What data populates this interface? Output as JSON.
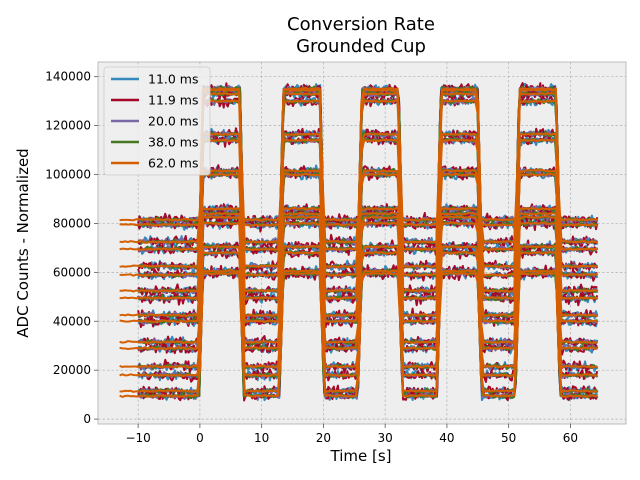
{
  "chart_data": {
    "type": "line",
    "title": [
      "Conversion Rate",
      "Grounded Cup"
    ],
    "xlabel": "Time [s]",
    "ylabel": "ADC Counts - Normalized",
    "xlim": [
      -16.5,
      69
    ],
    "ylim": [
      -2000,
      146000
    ],
    "xticks": [
      -10,
      0,
      10,
      20,
      30,
      40,
      50,
      60
    ],
    "yticks": [
      0,
      20000,
      40000,
      60000,
      80000,
      100000,
      120000,
      140000
    ],
    "xtick_labels": [
      "−10",
      "0",
      "10",
      "20",
      "30",
      "40",
      "50",
      "60"
    ],
    "ytick_labels": [
      "0",
      "20000",
      "40000",
      "60000",
      "80000",
      "100000",
      "120000",
      "140000"
    ],
    "grid": true,
    "legend_position": "top-left",
    "on_windows": [
      [
        0.5,
        6.5
      ],
      [
        13.5,
        19.5
      ],
      [
        26.2,
        32.2
      ],
      [
        39,
        45
      ],
      [
        51.7,
        57.7
      ]
    ],
    "levels": [
      {
        "off": 9500,
        "on": 59500
      },
      {
        "off": 11500,
        "on": 60500
      },
      {
        "off": 18000,
        "on": 68000
      },
      {
        "off": 21500,
        "on": 70500
      },
      {
        "off": 29000,
        "on": 80000
      },
      {
        "off": 31500,
        "on": 82500
      },
      {
        "off": 40000,
        "on": 100000
      },
      {
        "off": 42500,
        "on": 101500
      },
      {
        "off": 49500,
        "on": 114000
      },
      {
        "off": 52500,
        "on": 116500
      },
      {
        "off": 59000,
        "on": 130000
      },
      {
        "off": 62500,
        "on": 133000
      },
      {
        "off": 69500,
        "on": 134500
      },
      {
        "off": 72500,
        "on": 135000
      },
      {
        "off": 79500,
        "on": 84000
      },
      {
        "off": 81500,
        "on": 86000
      }
    ],
    "series": [
      {
        "name": "11.0 ms",
        "color": "#348abd",
        "start": -10,
        "end": 64.5,
        "noise": 1500
      },
      {
        "name": "11.9 ms",
        "color": "#a60628",
        "start": -10,
        "end": 64.5,
        "noise": 1800
      },
      {
        "name": "20.0 ms",
        "color": "#7a68a6",
        "start": -10,
        "end": 64.5,
        "noise": 900
      },
      {
        "name": "38.0 ms",
        "color": "#467821",
        "start": -10,
        "end": 64.5,
        "noise": 700
      },
      {
        "name": "62.0 ms",
        "color": "#d55e00",
        "start": -13,
        "end": 64.5,
        "noise": 300
      }
    ]
  }
}
